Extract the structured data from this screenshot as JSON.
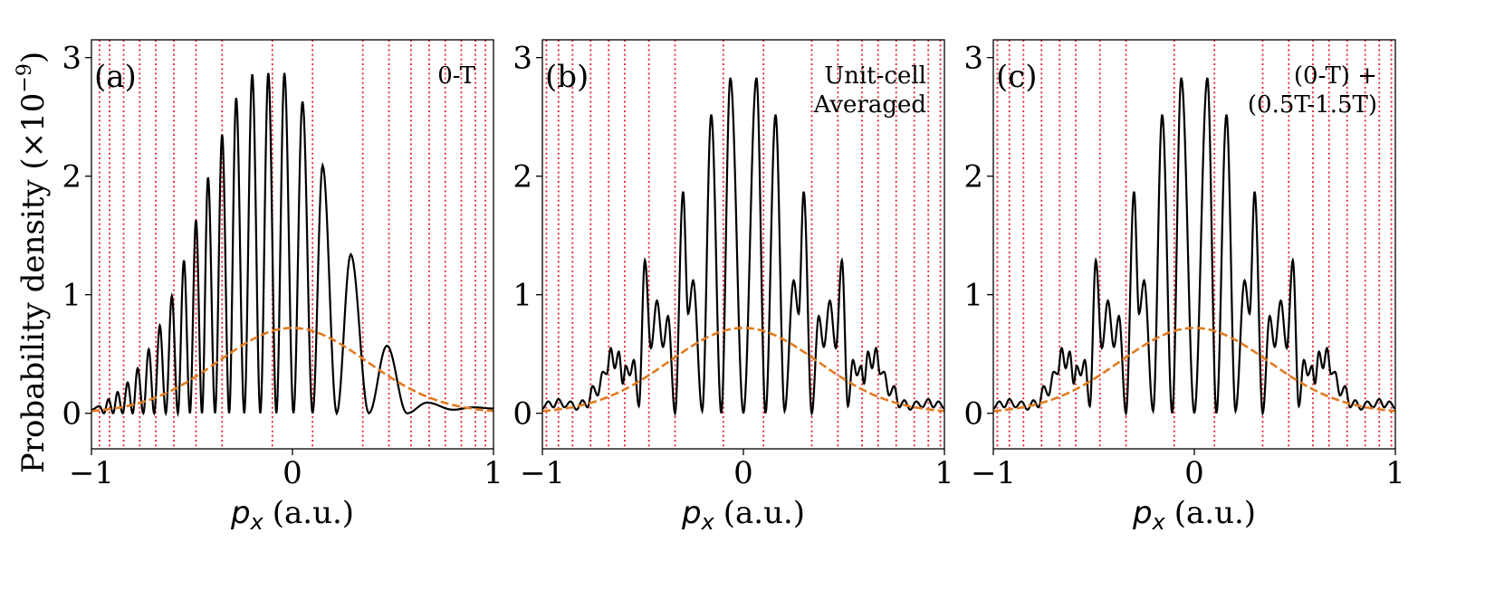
{
  "figure": {
    "ylabel_text": "Probability density (×10",
    "ylabel_exp": "−9",
    "ylabel_close": ")"
  },
  "chart_data": [
    {
      "type": "line",
      "panel_label": "(a)",
      "annotation": [
        "0-T"
      ],
      "xlabel_var": "p",
      "xlabel_sub": "x",
      "xlabel_unit": "(a.u.)",
      "xlim": [
        -1,
        1
      ],
      "ylim": [
        -0.3,
        3.15
      ],
      "xticks": [
        -1,
        0,
        1
      ],
      "xtick_labels": [
        "−1",
        "0",
        "1"
      ],
      "yticks": [
        0,
        1,
        2,
        3
      ],
      "ytick_labels": [
        "0",
        "1",
        "2",
        "3"
      ],
      "vlines": [
        -0.96,
        -0.91,
        -0.84,
        -0.76,
        -0.68,
        -0.59,
        -0.48,
        -0.35,
        -0.1,
        0.1,
        0.35,
        0.48,
        0.59,
        0.68,
        0.76,
        0.84,
        0.91,
        0.96
      ],
      "vline_color": "#e8202a",
      "series": [
        {
          "name": "probability density",
          "color": "#000000",
          "style": "solid",
          "peak_x": [
            -0.96,
            -0.915,
            -0.87,
            -0.82,
            -0.77,
            -0.715,
            -0.66,
            -0.6,
            -0.54,
            -0.48,
            -0.42,
            -0.35,
            -0.28,
            -0.2,
            -0.12,
            -0.04,
            0.05,
            0.15,
            0.29,
            0.47,
            0.67,
            0.9
          ],
          "peak_y": [
            0.06,
            0.12,
            0.18,
            0.26,
            0.38,
            0.54,
            0.74,
            0.99,
            1.29,
            1.63,
            1.99,
            2.35,
            2.66,
            2.86,
            2.87,
            2.87,
            2.63,
            2.09,
            1.34,
            0.57,
            0.09,
            0.05
          ],
          "zero_x": [
            -1.0,
            -0.938,
            -0.892,
            -0.845,
            -0.795,
            -0.742,
            -0.688,
            -0.63,
            -0.57,
            -0.51,
            -0.45,
            -0.385,
            -0.315,
            -0.24,
            -0.16,
            -0.08,
            0.005,
            0.1,
            0.22,
            0.38,
            0.57,
            0.8,
            1.0
          ],
          "zero_y": [
            0.03,
            0.0,
            0.0,
            0.0,
            0.0,
            0.0,
            0.0,
            0.0,
            0.0,
            0.0,
            0.0,
            0.0,
            0.0,
            0.0,
            0.0,
            0.0,
            0.0,
            0.0,
            0.0,
            0.0,
            0.0,
            0.03,
            0.04
          ]
        },
        {
          "name": "gaussian envelope",
          "color": "#e07b1f",
          "style": "dashed",
          "function": "gaussian",
          "amplitude": 0.72,
          "sigma": 0.37
        }
      ]
    },
    {
      "type": "line",
      "panel_label": "(b)",
      "annotation": [
        "Unit-cell",
        "Averaged"
      ],
      "xlabel_var": "p",
      "xlabel_sub": "x",
      "xlabel_unit": "(a.u.)",
      "xlim": [
        -1,
        1
      ],
      "ylim": [
        -0.3,
        3.15
      ],
      "xticks": [
        -1,
        0,
        1
      ],
      "xtick_labels": [
        "−1",
        "0",
        "1"
      ],
      "yticks": [
        0,
        1,
        2,
        3
      ],
      "ytick_labels": [
        "0",
        "1",
        "2",
        "3"
      ],
      "vlines": [
        -0.98,
        -0.92,
        -0.85,
        -0.76,
        -0.67,
        -0.59,
        -0.47,
        -0.34,
        -0.1,
        0.1,
        0.34,
        0.47,
        0.59,
        0.67,
        0.76,
        0.85,
        0.92,
        0.98
      ],
      "vline_color": "#e8202a",
      "series": [
        {
          "name": "probability density",
          "color": "#000000",
          "style": "solid",
          "peak_x": [
            -0.97,
            -0.92,
            -0.86,
            -0.8,
            -0.75,
            -0.7,
            -0.66,
            -0.62,
            -0.585,
            -0.545,
            -0.49,
            -0.43,
            -0.375,
            -0.3,
            -0.25,
            -0.16,
            -0.065,
            0.065,
            0.16,
            0.25,
            0.3,
            0.375,
            0.43,
            0.49,
            0.545,
            0.585,
            0.62,
            0.66,
            0.7,
            0.75,
            0.8,
            0.86,
            0.92,
            0.97
          ],
          "peak_y": [
            0.1,
            0.12,
            0.1,
            0.11,
            0.23,
            0.35,
            0.55,
            0.52,
            0.4,
            0.45,
            1.29,
            0.95,
            0.82,
            1.87,
            1.12,
            2.52,
            2.83,
            2.83,
            2.52,
            1.12,
            1.87,
            0.82,
            0.95,
            1.29,
            0.45,
            0.4,
            0.52,
            0.55,
            0.35,
            0.23,
            0.11,
            0.1,
            0.12,
            0.1
          ],
          "zero_x": [
            -1.0,
            -0.945,
            -0.89,
            -0.83,
            -0.775,
            -0.725,
            -0.68,
            -0.64,
            -0.6,
            -0.565,
            -0.52,
            -0.46,
            -0.4,
            -0.34,
            -0.275,
            -0.205,
            -0.11,
            0.0,
            0.11,
            0.205,
            0.275,
            0.34,
            0.4,
            0.46,
            0.52,
            0.565,
            0.6,
            0.64,
            0.68,
            0.725,
            0.775,
            0.83,
            0.89,
            0.945,
            1.0
          ],
          "zero_y": [
            0.04,
            0.05,
            0.05,
            0.03,
            0.05,
            0.15,
            0.33,
            0.38,
            0.25,
            0.32,
            0.06,
            0.55,
            0.56,
            0.0,
            0.84,
            0.02,
            0.0,
            0.0,
            0.0,
            0.02,
            0.84,
            0.0,
            0.56,
            0.55,
            0.06,
            0.32,
            0.25,
            0.38,
            0.33,
            0.15,
            0.05,
            0.03,
            0.05,
            0.05,
            0.04
          ]
        },
        {
          "name": "gaussian envelope",
          "color": "#e07b1f",
          "style": "dashed",
          "function": "gaussian",
          "amplitude": 0.72,
          "sigma": 0.37
        }
      ]
    },
    {
      "type": "line",
      "panel_label": "(c)",
      "annotation": [
        "(0-T) +",
        "(0.5T-1.5T)"
      ],
      "xlabel_var": "p",
      "xlabel_sub": "x",
      "xlabel_unit": "(a.u.)",
      "xlim": [
        -1,
        1
      ],
      "ylim": [
        -0.3,
        3.15
      ],
      "xticks": [
        -1,
        0,
        1
      ],
      "xtick_labels": [
        "−1",
        "0",
        "1"
      ],
      "yticks": [
        0,
        1,
        2,
        3
      ],
      "ytick_labels": [
        "0",
        "1",
        "2",
        "3"
      ],
      "vlines": [
        -0.98,
        -0.92,
        -0.85,
        -0.76,
        -0.67,
        -0.59,
        -0.47,
        -0.34,
        -0.1,
        0.1,
        0.34,
        0.47,
        0.59,
        0.67,
        0.76,
        0.85,
        0.92,
        0.98
      ],
      "vline_color": "#e8202a",
      "series": [
        {
          "name": "probability density",
          "color": "#000000",
          "style": "solid",
          "peak_x": [
            -0.97,
            -0.92,
            -0.86,
            -0.8,
            -0.75,
            -0.7,
            -0.66,
            -0.62,
            -0.585,
            -0.545,
            -0.49,
            -0.43,
            -0.375,
            -0.3,
            -0.25,
            -0.16,
            -0.065,
            0.065,
            0.16,
            0.25,
            0.3,
            0.375,
            0.43,
            0.49,
            0.545,
            0.585,
            0.62,
            0.66,
            0.7,
            0.75,
            0.8,
            0.86,
            0.92,
            0.97
          ],
          "peak_y": [
            0.1,
            0.12,
            0.1,
            0.11,
            0.23,
            0.35,
            0.55,
            0.52,
            0.4,
            0.45,
            1.29,
            0.95,
            0.82,
            1.87,
            1.12,
            2.52,
            2.83,
            2.83,
            2.52,
            1.12,
            1.87,
            0.82,
            0.95,
            1.29,
            0.45,
            0.4,
            0.52,
            0.55,
            0.35,
            0.23,
            0.11,
            0.1,
            0.12,
            0.1
          ],
          "zero_x": [
            -1.0,
            -0.945,
            -0.89,
            -0.83,
            -0.775,
            -0.725,
            -0.68,
            -0.64,
            -0.6,
            -0.565,
            -0.52,
            -0.46,
            -0.4,
            -0.34,
            -0.275,
            -0.205,
            -0.11,
            0.0,
            0.11,
            0.205,
            0.275,
            0.34,
            0.4,
            0.46,
            0.52,
            0.565,
            0.6,
            0.64,
            0.68,
            0.725,
            0.775,
            0.83,
            0.89,
            0.945,
            1.0
          ],
          "zero_y": [
            0.04,
            0.05,
            0.05,
            0.03,
            0.05,
            0.15,
            0.33,
            0.38,
            0.25,
            0.32,
            0.06,
            0.55,
            0.56,
            0.0,
            0.84,
            0.02,
            0.0,
            0.0,
            0.0,
            0.02,
            0.84,
            0.0,
            0.56,
            0.55,
            0.06,
            0.32,
            0.25,
            0.38,
            0.33,
            0.15,
            0.05,
            0.03,
            0.05,
            0.05,
            0.04
          ]
        },
        {
          "name": "gaussian envelope",
          "color": "#e07b1f",
          "style": "dashed",
          "function": "gaussian",
          "amplitude": 0.72,
          "sigma": 0.37
        }
      ]
    }
  ]
}
